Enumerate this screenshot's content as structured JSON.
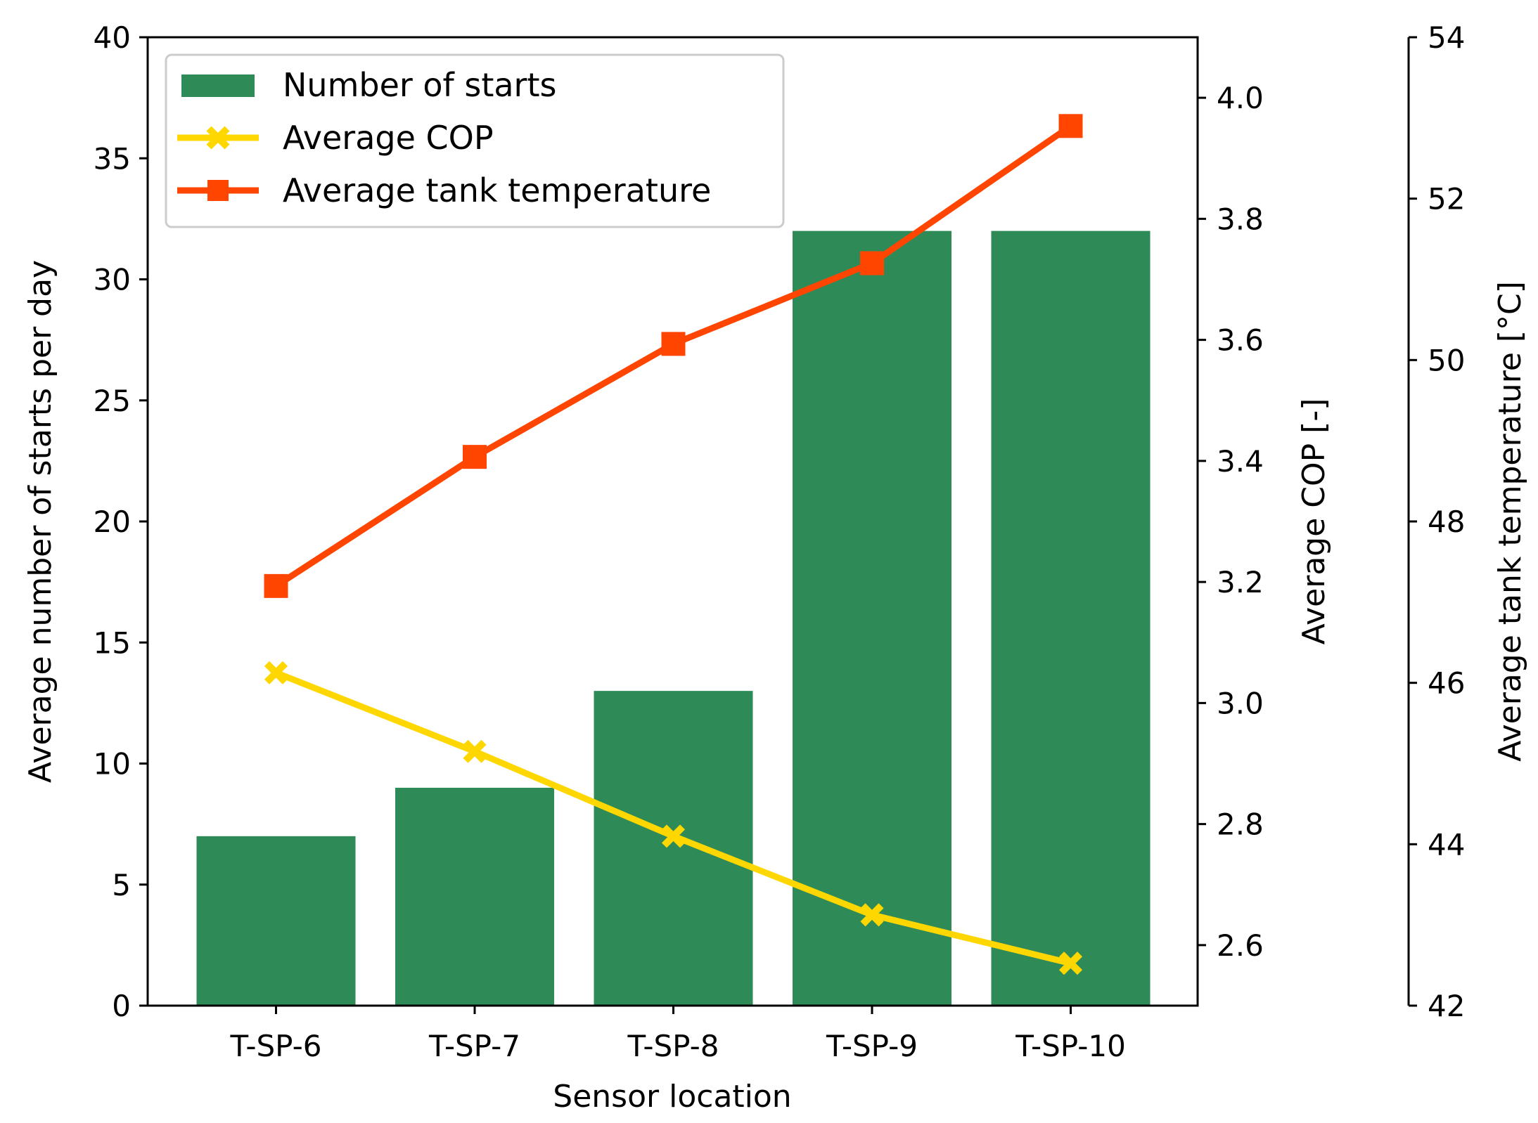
{
  "chart_data": {
    "type": "bar",
    "categories": [
      "T-SP-6",
      "T-SP-7",
      "T-SP-8",
      "T-SP-9",
      "T-SP-10"
    ],
    "xlabel": "Sensor location",
    "series": [
      {
        "name": "Number of starts",
        "kind": "bar",
        "axis": "left",
        "color": "#2e8b57",
        "values": [
          7,
          9,
          13,
          32,
          32
        ]
      },
      {
        "name": "Average COP",
        "kind": "line",
        "marker": "x",
        "axis": "right1",
        "color": "#ffd700",
        "values": [
          3.05,
          2.92,
          2.78,
          2.65,
          2.57
        ]
      },
      {
        "name": "Average tank temperature",
        "kind": "line",
        "marker": "square",
        "axis": "right2",
        "color": "#ff4500",
        "values": [
          47.2,
          48.8,
          50.2,
          51.2,
          52.9
        ]
      }
    ],
    "axes": {
      "left": {
        "label": "Average number of starts per day",
        "ylim": [
          0,
          40
        ],
        "ticks": [
          "0",
          "5",
          "10",
          "15",
          "20",
          "25",
          "30",
          "35",
          "40"
        ]
      },
      "right1": {
        "label": "Average COP [-]",
        "ylim": [
          2.5,
          4.1
        ],
        "ticks": [
          "2.6",
          "2.8",
          "3.0",
          "3.2",
          "3.4",
          "3.6",
          "3.8",
          "4.0"
        ]
      },
      "right2": {
        "label": "Average tank temperature [°C]",
        "ylim": [
          42,
          54
        ],
        "ticks": [
          "42",
          "44",
          "46",
          "48",
          "50",
          "52",
          "54"
        ]
      }
    },
    "legend": {
      "placement": "top-left",
      "entries": [
        "Number of starts",
        "Average COP",
        "Average tank temperature"
      ]
    }
  }
}
